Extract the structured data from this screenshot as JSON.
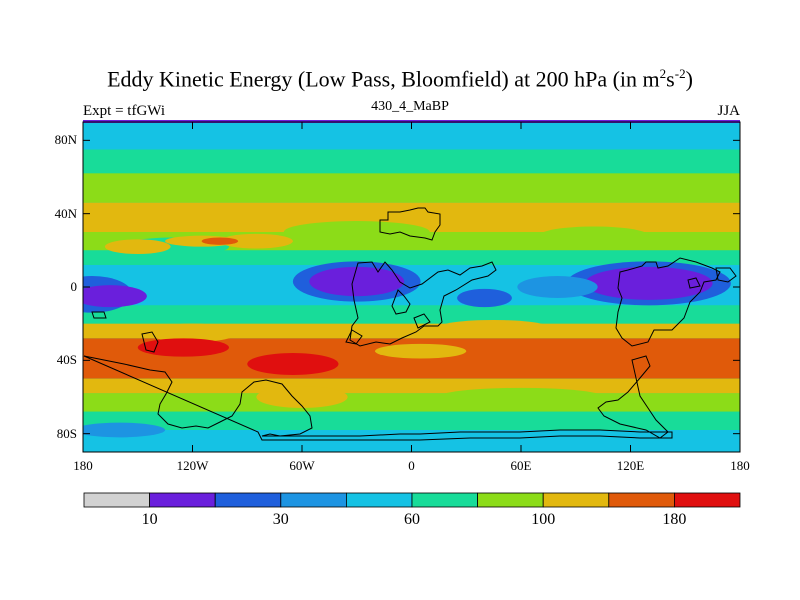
{
  "chart_data": {
    "type": "heatmap",
    "title": "Eddy Kinetic Energy (Low Pass, Bloomfield) at 200 hPa (in m",
    "title_unit_sup1": "2",
    "title_unit_mid": "s",
    "title_unit_sup2": "-2",
    "title_close": ")",
    "subtitle_left": "Expt = tfGWi",
    "subtitle_center": "430_4_MaBP",
    "subtitle_right": "JJA",
    "xlim": [
      -180,
      180
    ],
    "ylim": [
      -90,
      90
    ],
    "x_ticks": [
      {
        "value": -180,
        "label": "180"
      },
      {
        "value": -120,
        "label": "120W"
      },
      {
        "value": -60,
        "label": "60W"
      },
      {
        "value": 0,
        "label": "0"
      },
      {
        "value": 60,
        "label": "60E"
      },
      {
        "value": 120,
        "label": "120E"
      },
      {
        "value": 180,
        "label": "180"
      }
    ],
    "y_ticks": [
      {
        "value": 80,
        "label": "80N"
      },
      {
        "value": 40,
        "label": "40N"
      },
      {
        "value": 0,
        "label": "0"
      },
      {
        "value": -40,
        "label": "40S"
      },
      {
        "value": -80,
        "label": "80S"
      }
    ],
    "colorbar": {
      "colors": [
        "#d2d2d2",
        "#6a1fdc",
        "#1f5fdc",
        "#1d94e2",
        "#15c2e4",
        "#18dc99",
        "#8cdc18",
        "#e2b80f",
        "#e05a0a",
        "#e00f0f"
      ],
      "labels": [
        {
          "index": 1,
          "label": "10"
        },
        {
          "index": 3,
          "label": "30"
        },
        {
          "index": 5,
          "label": "60"
        },
        {
          "index": 7,
          "label": "100"
        },
        {
          "index": 9,
          "label": "180"
        }
      ]
    },
    "background_level": 5,
    "zonal_bands": [
      {
        "lat": [
          75,
          90
        ],
        "level": 4
      },
      {
        "lat": [
          62,
          75
        ],
        "level": 5
      },
      {
        "lat": [
          46,
          62
        ],
        "level": 6
      },
      {
        "lat": [
          30,
          46
        ],
        "level": 7
      },
      {
        "lat": [
          20,
          30
        ],
        "level": 6
      },
      {
        "lat": [
          12,
          20
        ],
        "level": 5
      },
      {
        "lat": [
          -10,
          12
        ],
        "level": 4
      },
      {
        "lat": [
          -20,
          -10
        ],
        "level": 5
      },
      {
        "lat": [
          -28,
          -20
        ],
        "level": 7
      },
      {
        "lat": [
          -50,
          -28
        ],
        "level": 8
      },
      {
        "lat": [
          -58,
          -50
        ],
        "level": 7
      },
      {
        "lat": [
          -68,
          -58
        ],
        "level": 6
      },
      {
        "lat": [
          -78,
          -68
        ],
        "level": 5
      },
      {
        "lat": [
          -90,
          -78
        ],
        "level": 4
      }
    ],
    "blobs": [
      {
        "lon": -130,
        "lat": 22,
        "rlon": 30,
        "rlat": 5,
        "level": 5
      },
      {
        "lon": -30,
        "lat": 30,
        "rlon": 40,
        "rlat": 6,
        "level": 6
      },
      {
        "lon": 100,
        "lat": 28,
        "rlon": 30,
        "rlat": 5,
        "level": 6
      },
      {
        "lon": -85,
        "lat": 25,
        "rlon": 20,
        "rlat": 4,
        "level": 7
      },
      {
        "lon": -115,
        "lat": 25,
        "rlon": 20,
        "rlat": 3,
        "level": 7
      },
      {
        "lon": -150,
        "lat": 22,
        "rlon": 18,
        "rlat": 4,
        "level": 7
      },
      {
        "lon": -105,
        "lat": 25,
        "rlon": 10,
        "rlat": 2,
        "level": 8
      },
      {
        "lon": -175,
        "lat": -4,
        "rlon": 22,
        "rlat": 10,
        "level": 2
      },
      {
        "lon": -165,
        "lat": -5,
        "rlon": 20,
        "rlat": 6,
        "level": 1
      },
      {
        "lon": -30,
        "lat": 3,
        "rlon": 35,
        "rlat": 11,
        "level": 2
      },
      {
        "lon": -30,
        "lat": 3,
        "rlon": 26,
        "rlat": 8,
        "level": 1
      },
      {
        "lon": 130,
        "lat": 2,
        "rlon": 45,
        "rlat": 12,
        "level": 2
      },
      {
        "lon": 130,
        "lat": 2,
        "rlon": 35,
        "rlat": 9,
        "level": 1
      },
      {
        "lon": 40,
        "lat": -6,
        "rlon": 15,
        "rlat": 5,
        "level": 2
      },
      {
        "lon": 80,
        "lat": 0,
        "rlon": 22,
        "rlat": 6,
        "level": 3
      },
      {
        "lon": -120,
        "lat": -25,
        "rlon": 25,
        "rlat": 5,
        "level": 7
      },
      {
        "lon": 45,
        "lat": -22,
        "rlon": 30,
        "rlat": 4,
        "level": 7
      },
      {
        "lon": 5,
        "lat": -35,
        "rlon": 25,
        "rlat": 4,
        "level": 7
      },
      {
        "lon": -125,
        "lat": -33,
        "rlon": 25,
        "rlat": 5,
        "level": 9
      },
      {
        "lon": -65,
        "lat": -42,
        "rlon": 25,
        "rlat": 6,
        "level": 9
      },
      {
        "lon": -60,
        "lat": -60,
        "rlon": 25,
        "rlat": 6,
        "level": 7
      },
      {
        "lon": 60,
        "lat": -60,
        "rlon": 45,
        "rlat": 5,
        "level": 6
      },
      {
        "lon": -160,
        "lat": -78,
        "rlon": 25,
        "rlat": 4,
        "level": 3
      }
    ]
  }
}
